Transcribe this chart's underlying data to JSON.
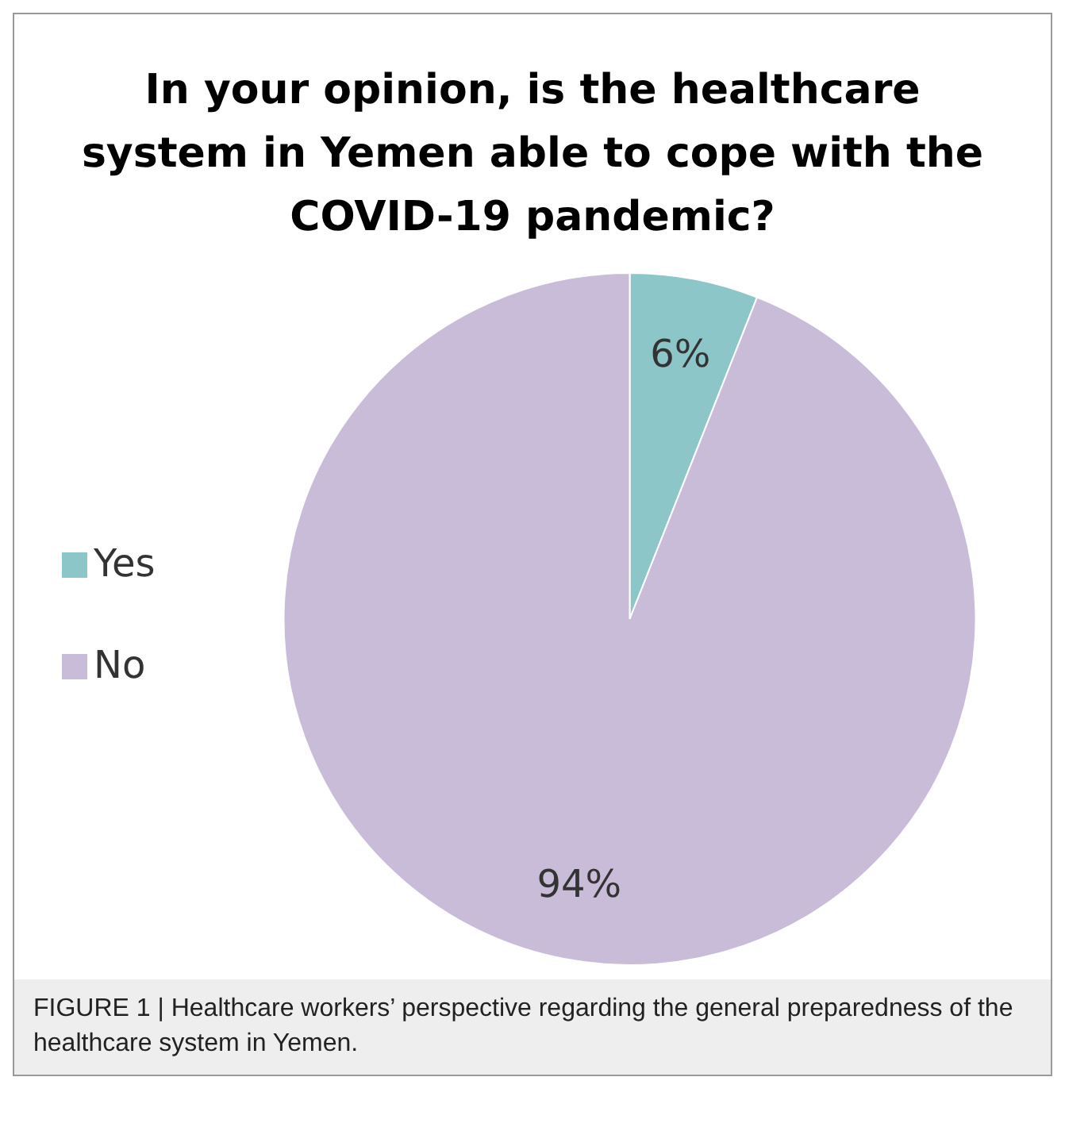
{
  "chart_data": {
    "type": "pie",
    "title": "In your opinion, is the healthcare system in Yemen able to cope with the COVID-19 pandemic?",
    "categories": [
      "Yes",
      "No"
    ],
    "values": [
      6,
      94
    ],
    "colors": [
      "#8cc6c8",
      "#c9bcd8"
    ],
    "value_labels": [
      "6%",
      "94%"
    ],
    "legend": "left",
    "annotations": [
      "FIGURE 1 | Healthcare workers’ perspective regarding the general preparedness of the healthcare system in Yemen."
    ]
  }
}
